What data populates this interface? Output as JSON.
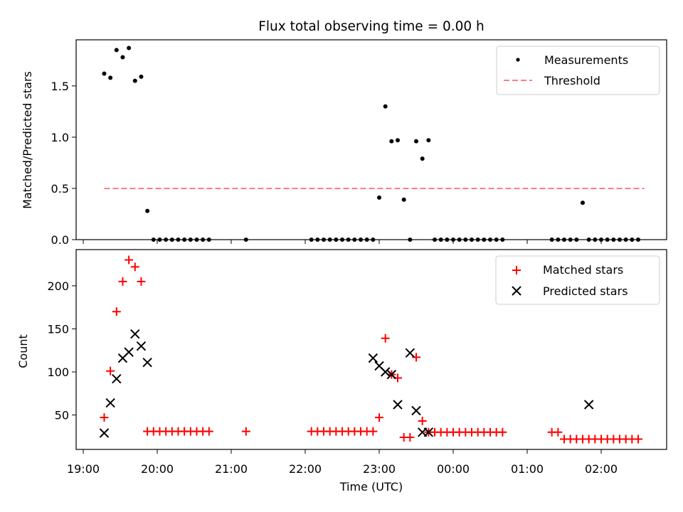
{
  "title": "Flux total observing time = 0.00 h",
  "colors": {
    "measure": "#000000",
    "threshold": "#ff7f7f",
    "matched": "#ff0000",
    "predicted": "#000000"
  },
  "chart_data": [
    {
      "type": "scatter",
      "ylabel": "Matched/Predicted stars",
      "ylim": [
        0,
        1.95
      ],
      "yticks": [
        0.0,
        0.5,
        1.0,
        1.5
      ],
      "ytick_labels": [
        "0.0",
        "0.5",
        "1.0",
        "1.5"
      ],
      "legend_position": "top-right",
      "threshold": {
        "name": "Threshold",
        "value": 0.5,
        "x_start": "19:17",
        "x_end": "02:35"
      },
      "series": [
        {
          "name": "Measurements",
          "marker": "dot",
          "x": [
            "19:17",
            "19:22",
            "19:27",
            "19:32",
            "19:37",
            "19:42",
            "19:47",
            "19:52",
            "19:57",
            "20:02",
            "20:07",
            "20:12",
            "20:17",
            "20:22",
            "20:27",
            "20:32",
            "20:37",
            "20:42",
            "21:12",
            "22:05",
            "22:10",
            "22:15",
            "22:20",
            "22:25",
            "22:30",
            "22:35",
            "22:40",
            "22:45",
            "22:50",
            "22:55",
            "23:00",
            "23:05",
            "23:10",
            "23:15",
            "23:20",
            "23:25",
            "23:30",
            "23:35",
            "23:40",
            "23:45",
            "23:50",
            "23:55",
            "00:00",
            "00:05",
            "00:10",
            "00:15",
            "00:20",
            "00:25",
            "00:30",
            "00:35",
            "00:40",
            "01:20",
            "01:25",
            "01:30",
            "01:35",
            "01:40",
            "01:45",
            "01:50",
            "01:55",
            "02:00",
            "02:05",
            "02:10",
            "02:15",
            "02:20",
            "02:25",
            "02:30"
          ],
          "y": [
            1.62,
            1.58,
            1.85,
            1.78,
            1.87,
            1.55,
            1.59,
            0.28,
            0.0,
            0.0,
            0.0,
            0.0,
            0.0,
            0.0,
            0.0,
            0.0,
            0.0,
            0.0,
            0.0,
            0.0,
            0.0,
            0.0,
            0.0,
            0.0,
            0.0,
            0.0,
            0.0,
            0.0,
            0.0,
            0.0,
            0.41,
            1.3,
            0.96,
            0.97,
            0.39,
            0.0,
            0.96,
            0.79,
            0.97,
            0.0,
            0.0,
            0.0,
            0.0,
            0.0,
            0.0,
            0.0,
            0.0,
            0.0,
            0.0,
            0.0,
            0.0,
            0.0,
            0.0,
            0.0,
            0.0,
            0.0,
            0.36,
            0.0,
            0.0,
            0.0,
            0.0,
            0.0,
            0.0,
            0.0,
            0.0,
            0.0
          ]
        }
      ]
    },
    {
      "type": "scatter",
      "xlabel": "Time (UTC)",
      "ylabel": "Count",
      "ylim": [
        10,
        242
      ],
      "yticks": [
        50,
        100,
        150,
        200
      ],
      "ytick_labels": [
        "50",
        "100",
        "150",
        "200"
      ],
      "xticks": [
        "19:00",
        "20:00",
        "21:00",
        "22:00",
        "23:00",
        "00:00",
        "01:00",
        "02:00"
      ],
      "legend_position": "top-right",
      "series": [
        {
          "name": "Matched stars",
          "marker": "plus",
          "x": [
            "19:17",
            "19:22",
            "19:27",
            "19:32",
            "19:37",
            "19:42",
            "19:47",
            "19:52",
            "19:57",
            "20:02",
            "20:07",
            "20:12",
            "20:17",
            "20:22",
            "20:27",
            "20:32",
            "20:37",
            "20:42",
            "21:12",
            "22:05",
            "22:10",
            "22:15",
            "22:20",
            "22:25",
            "22:30",
            "22:35",
            "22:40",
            "22:45",
            "22:50",
            "22:55",
            "23:00",
            "23:05",
            "23:10",
            "23:15",
            "23:20",
            "23:25",
            "23:30",
            "23:35",
            "23:40",
            "23:45",
            "23:50",
            "23:55",
            "00:00",
            "00:05",
            "00:10",
            "00:15",
            "00:20",
            "00:25",
            "00:30",
            "00:35",
            "00:40",
            "01:20",
            "01:25",
            "01:30",
            "01:35",
            "01:40",
            "01:45",
            "01:50",
            "01:55",
            "02:00",
            "02:05",
            "02:10",
            "02:15",
            "02:20",
            "02:25",
            "02:30"
          ],
          "y": [
            47,
            101,
            170,
            205,
            230,
            222,
            205,
            31,
            31,
            31,
            31,
            31,
            31,
            31,
            31,
            31,
            31,
            31,
            31,
            31,
            31,
            31,
            31,
            31,
            31,
            31,
            31,
            31,
            31,
            31,
            47,
            139,
            97,
            93,
            24,
            24,
            117,
            43,
            30,
            30,
            30,
            30,
            30,
            30,
            30,
            30,
            30,
            30,
            30,
            30,
            30,
            30,
            30,
            22,
            22,
            22,
            22,
            22,
            22,
            22,
            22,
            22,
            22,
            22,
            22,
            22
          ]
        },
        {
          "name": "Predicted stars",
          "marker": "x",
          "x": [
            "19:17",
            "19:22",
            "19:27",
            "19:32",
            "19:37",
            "19:42",
            "19:47",
            "19:52",
            "22:55",
            "23:00",
            "23:05",
            "23:10",
            "23:15",
            "23:25",
            "23:30",
            "23:35",
            "23:40",
            "01:50"
          ],
          "y": [
            29,
            64,
            92,
            116,
            123,
            144,
            130,
            111,
            116,
            107,
            100,
            97,
            62,
            122,
            55,
            30,
            30,
            62
          ]
        }
      ]
    }
  ]
}
